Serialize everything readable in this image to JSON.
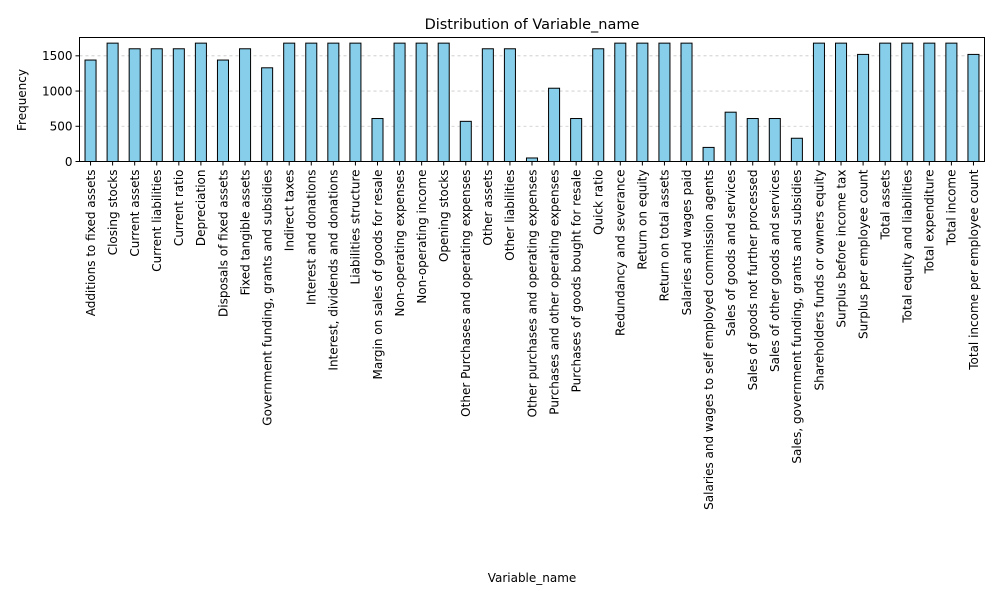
{
  "chart_data": {
    "type": "bar",
    "title": "Distribution of Variable_name",
    "xlabel": "Variable_name",
    "ylabel": "Frequency",
    "ylim": [
      0,
      1760
    ],
    "yticks": [
      0,
      500,
      1000,
      1500
    ],
    "grid": "y-dashed",
    "bar_color": "#87ceeb",
    "bar_edge_color": "#000000",
    "grid_color": "#c8c8c8",
    "categories": [
      "Additions to fixed assets",
      "Closing stocks",
      "Current assets",
      "Current liabilities",
      "Current ratio",
      "Depreciation",
      "Disposals of fixed assets",
      "Fixed tangible assets",
      "Government funding, grants and subsidies",
      "Indirect taxes",
      "Interest and donations",
      "Interest, dividends and donations",
      "Liabilities structure",
      "Margin on sales of goods for resale",
      "Non-operating expenses",
      "Non-operating income",
      "Opening stocks",
      "Other Purchases and operating expenses",
      "Other assets",
      "Other liabilities",
      "Other purchases and operating expenses",
      "Purchases and other operating expenses",
      "Purchases of goods bought for resale",
      "Quick ratio",
      "Redundancy and severance",
      "Return on equity",
      "Return on total assets",
      "Salaries and wages paid",
      "Salaries and wages to self employed commission agents",
      "Sales of goods and services",
      "Sales of goods not further processed",
      "Sales of other goods and services",
      "Sales, government funding, grants and subsidies",
      "Shareholders funds or owners equity",
      "Surplus before income tax",
      "Surplus per employee count",
      "Total assets",
      "Total equity and liabilities",
      "Total expenditure",
      "Total income",
      "Total income per employee count"
    ],
    "values": [
      1440,
      1680,
      1600,
      1600,
      1600,
      1680,
      1440,
      1600,
      1330,
      1680,
      1680,
      1680,
      1680,
      610,
      1680,
      1680,
      1680,
      570,
      1600,
      1600,
      50,
      1040,
      610,
      1600,
      1680,
      1680,
      1680,
      1680,
      200,
      700,
      610,
      610,
      330,
      1680,
      1680,
      1520,
      1680,
      1680,
      1680,
      1680,
      1520
    ]
  }
}
